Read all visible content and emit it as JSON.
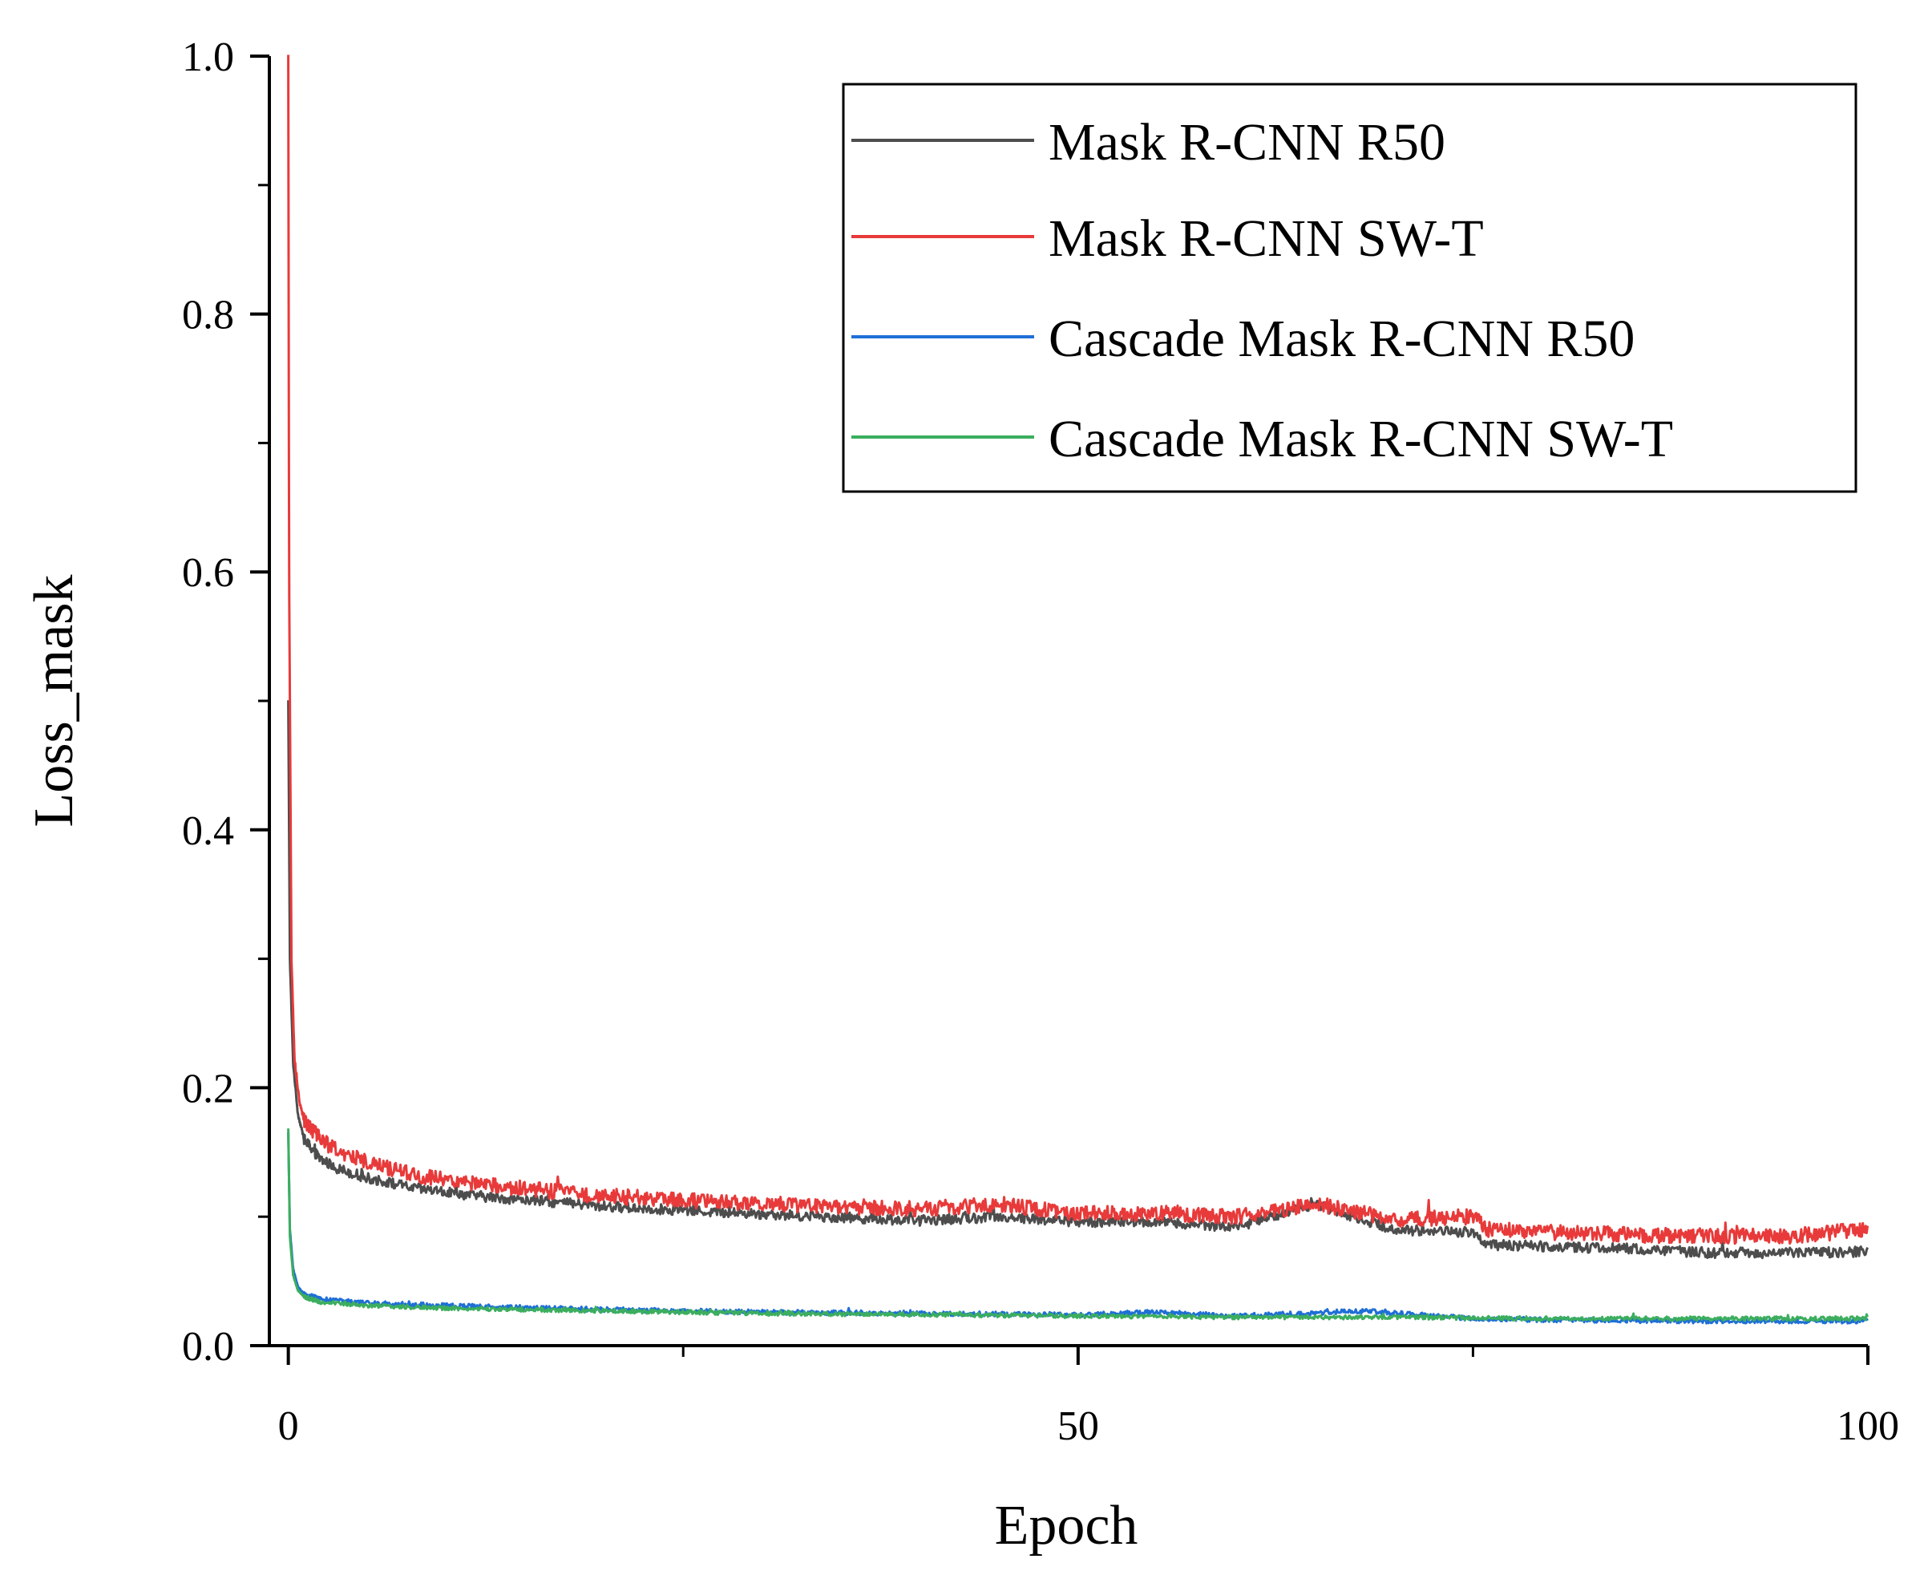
{
  "chart_data": {
    "type": "line",
    "xlabel": "Epoch",
    "ylabel": "Loss_mask",
    "xlim": [
      -1.2,
      100
    ],
    "ylim": [
      0,
      1.0
    ],
    "x_ticks": [
      0,
      50,
      100
    ],
    "x_minor_ticks": [
      25,
      75
    ],
    "y_ticks": [
      0.0,
      0.2,
      0.4,
      0.6,
      0.8,
      1.0
    ],
    "y_tick_labels": [
      "0.0",
      "0.2",
      "0.4",
      "0.6",
      "0.8",
      "1.0"
    ],
    "y_minor_ticks": [
      0.1,
      0.3,
      0.5,
      0.7,
      0.9
    ],
    "legend_position": "top-right",
    "grid": false,
    "series": [
      {
        "name": "Mask R-CNN R50",
        "color": "#4d4d4d",
        "noise": 0.004,
        "x": [
          0,
          0.1,
          0.3,
          0.6,
          1,
          2,
          3,
          5,
          8,
          12,
          20,
          30,
          40,
          45,
          50,
          55,
          60,
          65,
          70,
          75,
          76,
          80,
          85,
          90,
          95,
          100
        ],
        "y": [
          0.5,
          0.3,
          0.22,
          0.18,
          0.16,
          0.145,
          0.138,
          0.13,
          0.122,
          0.116,
          0.108,
          0.102,
          0.097,
          0.1,
          0.096,
          0.096,
          0.092,
          0.11,
          0.09,
          0.088,
          0.078,
          0.077,
          0.075,
          0.072,
          0.072,
          0.073
        ]
      },
      {
        "name": "Mask R-CNN SW-T",
        "color": "#e83a3a",
        "noise": 0.006,
        "x": [
          0,
          0.05,
          0.2,
          0.4,
          0.7,
          1,
          2,
          3,
          5,
          8,
          12,
          20,
          30,
          40,
          45,
          50,
          55,
          60,
          65,
          70,
          75,
          76,
          80,
          85,
          90,
          95,
          100
        ],
        "y": [
          1.0,
          0.6,
          0.3,
          0.22,
          0.19,
          0.175,
          0.16,
          0.152,
          0.143,
          0.132,
          0.125,
          0.116,
          0.11,
          0.106,
          0.11,
          0.102,
          0.103,
          0.1,
          0.11,
          0.098,
          0.1,
          0.09,
          0.088,
          0.086,
          0.085,
          0.085,
          0.09
        ]
      },
      {
        "name": "Cascade Mask R-CNN R50",
        "color": "#1f6fd6",
        "noise": 0.0018,
        "x": [
          0,
          0.1,
          0.3,
          0.6,
          1,
          2,
          5,
          10,
          20,
          30,
          40,
          50,
          55,
          60,
          68,
          75,
          80,
          90,
          100
        ],
        "y": [
          0.165,
          0.09,
          0.06,
          0.046,
          0.04,
          0.036,
          0.033,
          0.031,
          0.028,
          0.026,
          0.025,
          0.024,
          0.026,
          0.023,
          0.027,
          0.021,
          0.02,
          0.019,
          0.019
        ]
      },
      {
        "name": "Cascade Mask R-CNN SW-T",
        "color": "#3cae5e",
        "noise": 0.0016,
        "x": [
          0,
          0.1,
          0.3,
          0.6,
          1,
          2,
          5,
          10,
          20,
          30,
          40,
          50,
          60,
          70,
          80,
          90,
          100
        ],
        "y": [
          0.168,
          0.085,
          0.055,
          0.043,
          0.038,
          0.034,
          0.031,
          0.029,
          0.027,
          0.025,
          0.024,
          0.023,
          0.022,
          0.022,
          0.021,
          0.021,
          0.021
        ]
      }
    ]
  }
}
